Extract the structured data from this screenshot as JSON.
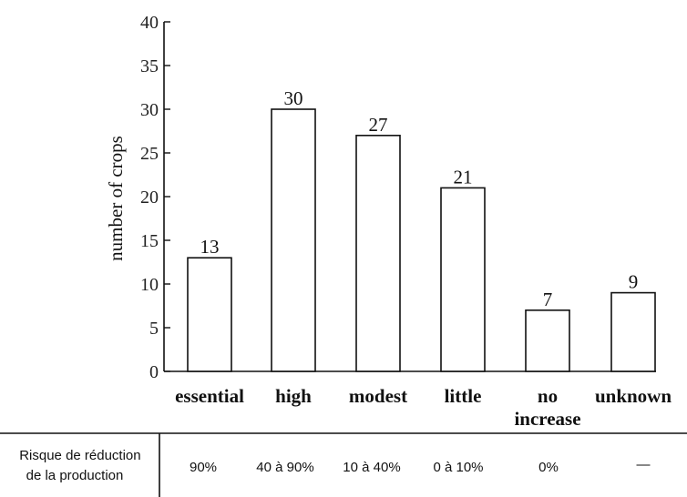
{
  "chart_data": {
    "type": "bar",
    "ylabel": "number of crops",
    "xlabel": "",
    "ylim": [
      0,
      40
    ],
    "yticks": [
      0,
      5,
      10,
      15,
      20,
      25,
      30,
      35,
      40
    ],
    "categories": [
      "essential",
      "high",
      "modest",
      "little",
      "no increase",
      "unknown"
    ],
    "category_lines": [
      [
        "essential"
      ],
      [
        "high"
      ],
      [
        "modest"
      ],
      [
        "little"
      ],
      [
        "no",
        "increase"
      ],
      [
        "unknown"
      ]
    ],
    "values": [
      13,
      30,
      27,
      21,
      7,
      9
    ],
    "data_labels": [
      "13",
      "30",
      "27",
      "21",
      "7",
      "9"
    ],
    "bar_color": "#ffffff",
    "bar_stroke": "#111111",
    "grid": false
  },
  "table": {
    "row_header_lines": [
      "Risque de réduction",
      "de la production"
    ],
    "values": [
      "90%",
      "40 à 90%",
      "10 à 40%",
      "0 à 10%",
      "0%",
      "—"
    ]
  }
}
